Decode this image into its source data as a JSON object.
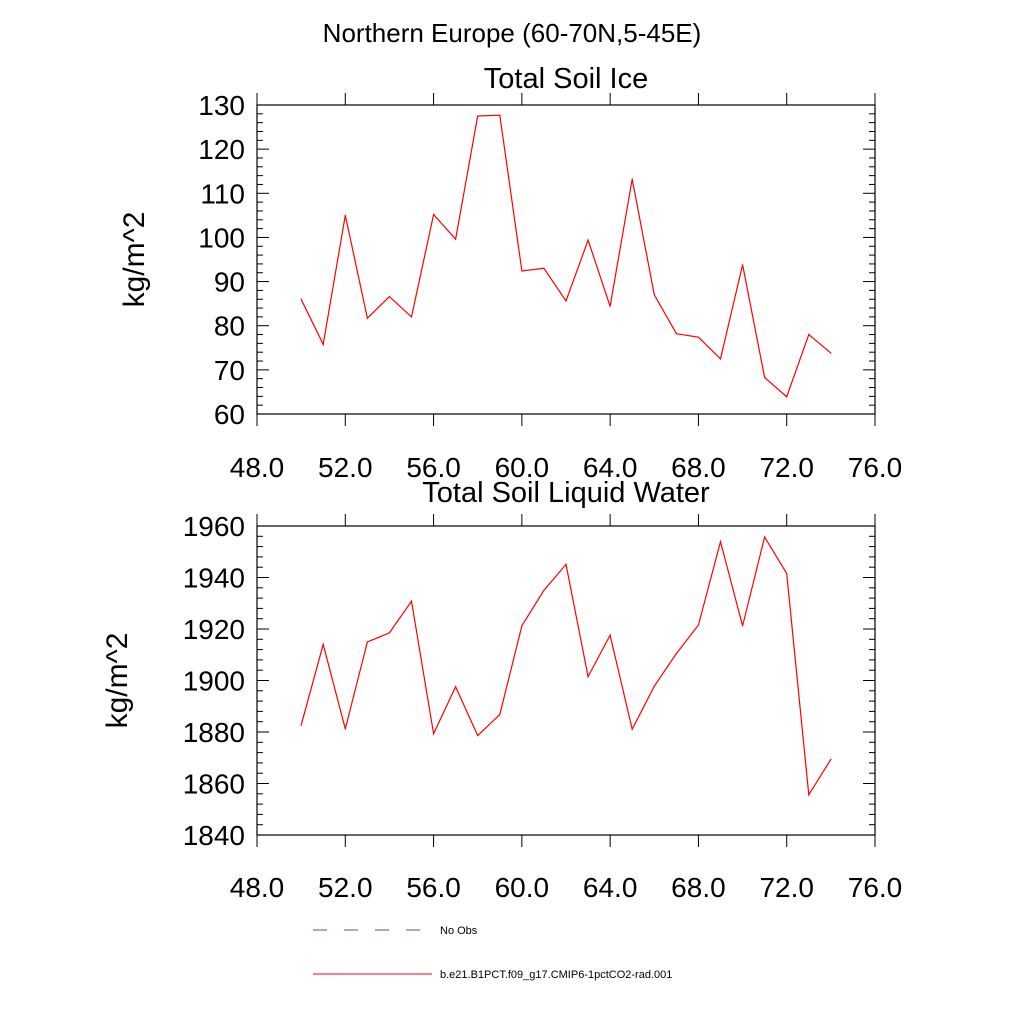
{
  "page": {
    "suptitle": "Northern Europe (60-70N,5-45E)"
  },
  "legend": {
    "items": [
      {
        "label": "No Obs",
        "color": "#4a5a8c",
        "style": "dashed"
      },
      {
        "label": "b.e21.B1PCT.f09_g17.CMIP6-1pctCO2-rad.001",
        "color": "#ff0000",
        "style": "solid"
      }
    ]
  },
  "chart_data": [
    {
      "type": "line",
      "title": "Total Soil Ice",
      "xlabel": "",
      "ylabel": "kg/m^2",
      "xlim": [
        48,
        76
      ],
      "ylim": [
        60,
        130
      ],
      "xticks": [
        48,
        52,
        56,
        60,
        64,
        68,
        72,
        76
      ],
      "xtick_labels": [
        "48.0",
        "52.0",
        "56.0",
        "60.0",
        "64.0",
        "68.0",
        "72.0",
        "76.0"
      ],
      "yticks": [
        60,
        70,
        80,
        90,
        100,
        110,
        120,
        130
      ],
      "ytick_labels": [
        "60",
        "70",
        "80",
        "90",
        "100",
        "110",
        "120",
        "130"
      ],
      "series": [
        {
          "name": "b.e21.B1PCT.f09_g17.CMIP6-1pctCO2-rad.001",
          "color": "#ff0000",
          "x": [
            50,
            51,
            52,
            53,
            54,
            55,
            56,
            57,
            58,
            59,
            60,
            61,
            62,
            63,
            64,
            65,
            66,
            67,
            68,
            69,
            70,
            71,
            72,
            73,
            74
          ],
          "y": [
            86,
            75.8,
            105,
            81.7,
            86.6,
            82,
            105.2,
            99.6,
            127.5,
            127.7,
            92.4,
            93,
            85.6,
            99.4,
            84.4,
            113.2,
            87,
            78.2,
            77.4,
            72.5,
            93.8,
            68.3,
            63.9,
            78,
            73.8
          ]
        }
      ]
    },
    {
      "type": "line",
      "title": "Total Soil Liquid Water",
      "xlabel": "",
      "ylabel": "kg/m^2",
      "xlim": [
        48,
        76
      ],
      "ylim": [
        1840,
        1960
      ],
      "xticks": [
        48,
        52,
        56,
        60,
        64,
        68,
        72,
        76
      ],
      "xtick_labels": [
        "48.0",
        "52.0",
        "56.0",
        "60.0",
        "64.0",
        "68.0",
        "72.0",
        "76.0"
      ],
      "yticks": [
        1840,
        1860,
        1880,
        1900,
        1920,
        1940,
        1960
      ],
      "ytick_labels": [
        "1840",
        "1860",
        "1880",
        "1900",
        "1920",
        "1940",
        "1960"
      ],
      "series": [
        {
          "name": "b.e21.B1PCT.f09_g17.CMIP6-1pctCO2-rad.001",
          "color": "#ff0000",
          "x": [
            50,
            51,
            52,
            53,
            54,
            55,
            56,
            57,
            58,
            59,
            60,
            61,
            62,
            63,
            64,
            65,
            66,
            67,
            68,
            69,
            70,
            71,
            72,
            73,
            74
          ],
          "y": [
            1882.6,
            1914,
            1881.2,
            1915,
            1918.5,
            1930.8,
            1879.3,
            1897.6,
            1878.6,
            1886.8,
            1921.3,
            1935,
            1945.1,
            1901.5,
            1917.6,
            1881.1,
            1897.8,
            1910.5,
            1921.5,
            1953.9,
            1921.2,
            1955.7,
            1941.6,
            1855.6,
            1869.4
          ]
        }
      ]
    }
  ]
}
